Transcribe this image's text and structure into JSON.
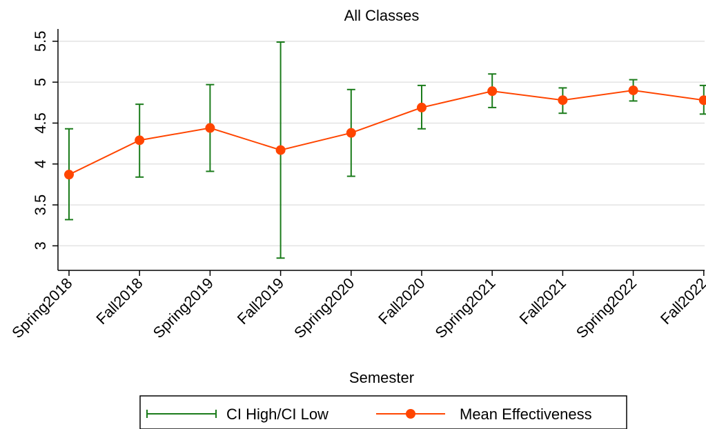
{
  "chart_data": {
    "type": "line",
    "title": "All Classes",
    "xlabel": "Semester",
    "ylabel": "",
    "categories": [
      "Spring2018",
      "Fall2018",
      "Spring2019",
      "Fall2019",
      "Spring2020",
      "Fall2020",
      "Spring2021",
      "Fall2021",
      "Spring2022",
      "Fall2022"
    ],
    "yticks": [
      "3",
      "3.5",
      "4",
      "4.5",
      "5",
      "5.5"
    ],
    "ylim": [
      2.7,
      5.65
    ],
    "grid": true,
    "legend_position": "bottom",
    "series": [
      {
        "name": "Mean Effectiveness",
        "values": [
          3.87,
          4.29,
          4.44,
          4.17,
          4.38,
          4.69,
          4.89,
          4.78,
          4.9,
          4.78
        ],
        "color": "#ff4500"
      },
      {
        "name": "CI High/CI Low",
        "high": [
          4.43,
          4.73,
          4.97,
          5.49,
          4.91,
          4.96,
          5.1,
          4.93,
          5.03,
          4.96
        ],
        "low": [
          3.32,
          3.84,
          3.91,
          2.85,
          3.85,
          4.43,
          4.69,
          4.62,
          4.77,
          4.61
        ],
        "color": "#1a7b1a"
      }
    ]
  }
}
